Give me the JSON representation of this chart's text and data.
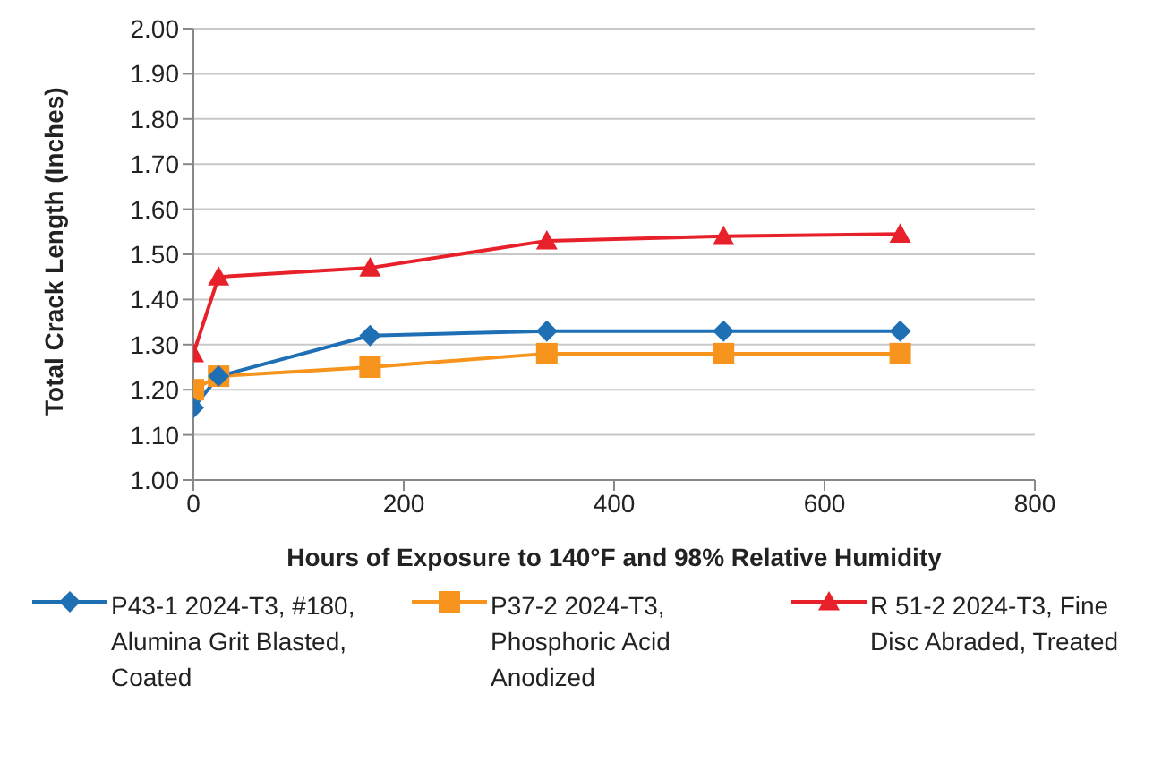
{
  "chart_data": {
    "type": "line",
    "xlabel": "Hours of Exposure to 140°F and 98% Relative Humidity",
    "ylabel": "Total Crack Length (Inches)",
    "x": [
      0,
      24,
      168,
      336,
      504,
      672
    ],
    "series": [
      {
        "name": "P43-1 2024-T3, #180, Alumina Grit Blasted, Coated",
        "color": "#1f6fb5",
        "marker": "diamond",
        "values": [
          1.16,
          1.23,
          1.32,
          1.33,
          1.33,
          1.33
        ]
      },
      {
        "name": "P37-2 2024-T3, Phosphoric Acid Anodized",
        "color": "#f7941d",
        "marker": "square",
        "values": [
          1.2,
          1.23,
          1.25,
          1.28,
          1.28,
          1.28
        ]
      },
      {
        "name": "R 51-2 2024-T3, Fine Disc Abraded, Treated",
        "color": "#e8202a",
        "marker": "triangle",
        "values": [
          1.28,
          1.45,
          1.47,
          1.53,
          1.54,
          1.545
        ]
      }
    ],
    "xlim": [
      0,
      800
    ],
    "xticks": [
      0,
      200,
      400,
      600,
      800
    ],
    "ylim": [
      1,
      2
    ],
    "yticks": [
      {
        "value": 1,
        "label": "1.00"
      },
      {
        "value": 1.1,
        "label": "1.10"
      },
      {
        "value": 1.2,
        "label": "1.20"
      },
      {
        "value": 1.3,
        "label": "1.30"
      },
      {
        "value": 1.4,
        "label": "1.40"
      },
      {
        "value": 1.5,
        "label": "1.50"
      },
      {
        "value": 1.6,
        "label": "1.60"
      },
      {
        "value": 1.7,
        "label": "1.70"
      },
      {
        "value": 1.8,
        "label": "1.80"
      },
      {
        "value": 1.9,
        "label": "1.90"
      },
      {
        "value": 2,
        "label": "2.00"
      }
    ],
    "grid": "y",
    "legend": "bottom",
    "line_style": "solid"
  }
}
